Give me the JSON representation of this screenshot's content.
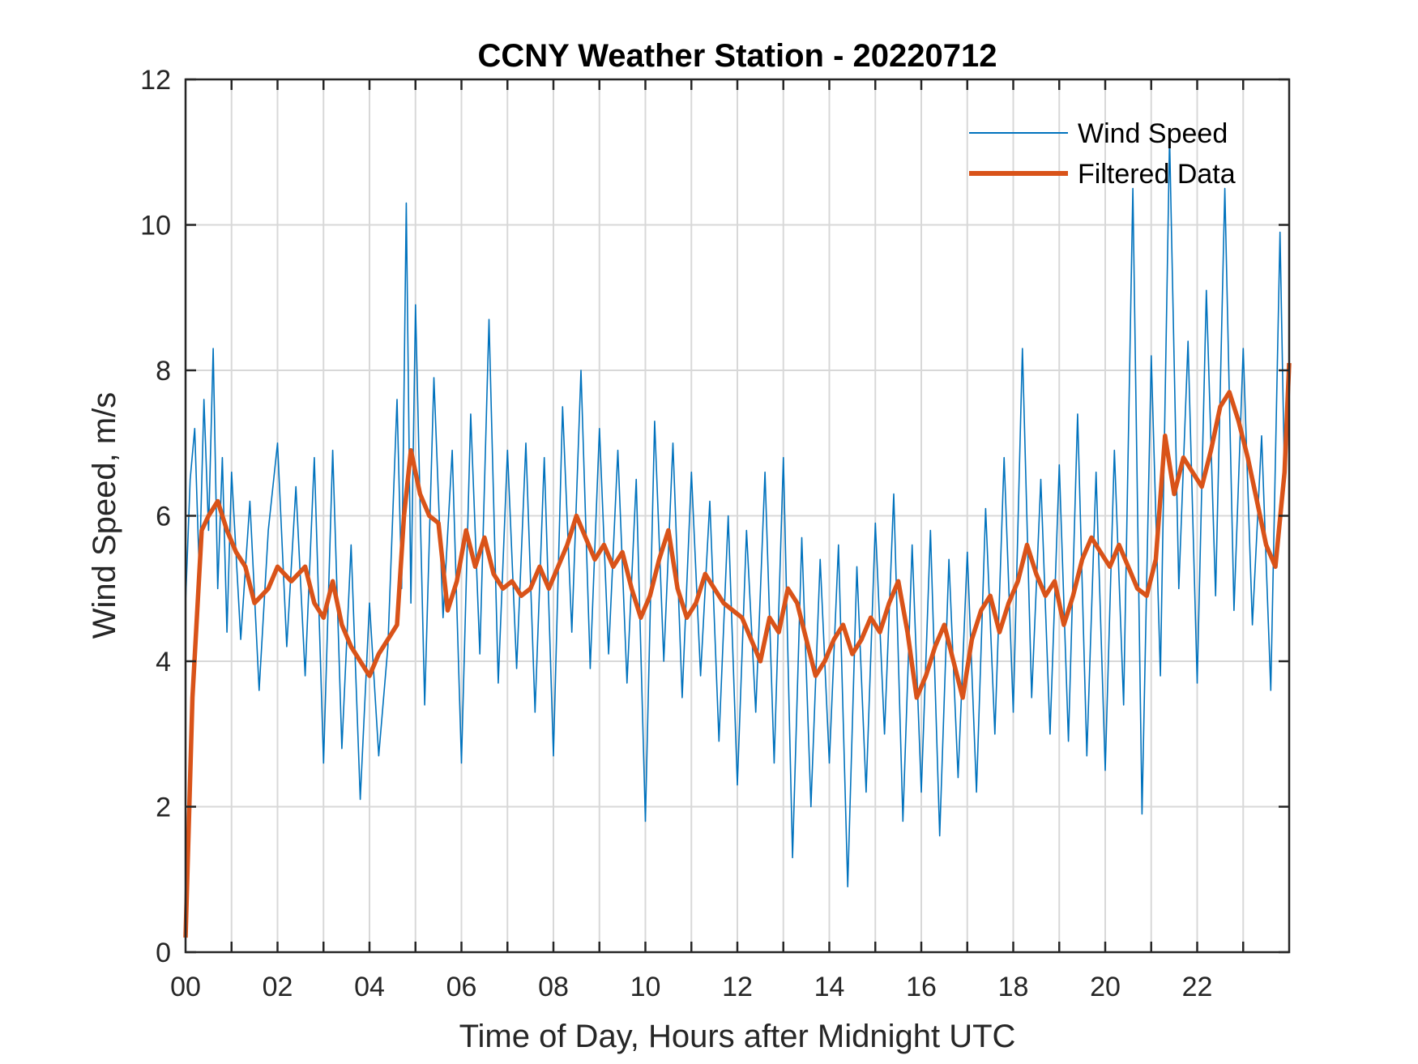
{
  "chart_data": {
    "type": "line",
    "title": "CCNY Weather Station - 20220712",
    "xlabel": "Time of Day, Hours after Midnight UTC",
    "ylabel": "Wind Speed, m/s",
    "xlim": [
      0,
      24
    ],
    "ylim": [
      0,
      12
    ],
    "x_ticks": [
      "00",
      "02",
      "04",
      "06",
      "08",
      "10",
      "12",
      "14",
      "16",
      "18",
      "20",
      "22"
    ],
    "y_ticks": [
      "0",
      "2",
      "4",
      "6",
      "8",
      "10",
      "12"
    ],
    "grid": true,
    "legend_position": "top-right",
    "series": [
      {
        "name": "Wind Speed",
        "color": "#0072BD",
        "x": [
          0.0,
          0.1,
          0.2,
          0.3,
          0.4,
          0.5,
          0.6,
          0.7,
          0.8,
          0.9,
          1.0,
          1.2,
          1.4,
          1.6,
          1.8,
          2.0,
          2.2,
          2.4,
          2.6,
          2.8,
          3.0,
          3.2,
          3.4,
          3.6,
          3.8,
          4.0,
          4.2,
          4.4,
          4.6,
          4.7,
          4.8,
          4.9,
          5.0,
          5.2,
          5.4,
          5.6,
          5.8,
          6.0,
          6.2,
          6.4,
          6.6,
          6.8,
          7.0,
          7.2,
          7.4,
          7.6,
          7.8,
          8.0,
          8.2,
          8.4,
          8.6,
          8.8,
          9.0,
          9.2,
          9.4,
          9.6,
          9.8,
          10.0,
          10.2,
          10.4,
          10.6,
          10.8,
          11.0,
          11.2,
          11.4,
          11.6,
          11.8,
          12.0,
          12.2,
          12.4,
          12.6,
          12.8,
          13.0,
          13.2,
          13.4,
          13.6,
          13.8,
          14.0,
          14.2,
          14.4,
          14.6,
          14.8,
          15.0,
          15.2,
          15.4,
          15.6,
          15.8,
          16.0,
          16.2,
          16.4,
          16.6,
          16.8,
          17.0,
          17.2,
          17.4,
          17.6,
          17.8,
          18.0,
          18.2,
          18.4,
          18.6,
          18.8,
          19.0,
          19.2,
          19.4,
          19.6,
          19.8,
          20.0,
          20.2,
          20.4,
          20.6,
          20.8,
          21.0,
          21.2,
          21.4,
          21.6,
          21.8,
          22.0,
          22.2,
          22.4,
          22.6,
          22.8,
          23.0,
          23.2,
          23.4,
          23.6,
          23.8,
          23.9
        ],
        "y": [
          4.8,
          6.5,
          7.2,
          5.2,
          7.6,
          5.8,
          8.3,
          5.0,
          6.8,
          4.4,
          6.6,
          4.3,
          6.2,
          3.6,
          5.8,
          7.0,
          4.2,
          6.4,
          3.8,
          6.8,
          2.6,
          6.9,
          2.8,
          5.6,
          2.1,
          4.8,
          2.7,
          4.2,
          7.6,
          5.0,
          10.3,
          4.8,
          8.9,
          3.4,
          7.9,
          4.6,
          6.9,
          2.6,
          7.4,
          4.1,
          8.7,
          3.7,
          6.9,
          3.9,
          7.0,
          3.3,
          6.8,
          2.7,
          7.5,
          4.4,
          8.0,
          3.9,
          7.2,
          4.1,
          6.9,
          3.7,
          6.5,
          1.8,
          7.3,
          4.0,
          7.0,
          3.5,
          6.6,
          3.8,
          6.2,
          2.9,
          6.0,
          2.3,
          5.8,
          3.3,
          6.6,
          2.6,
          6.8,
          1.3,
          5.7,
          2.0,
          5.4,
          2.6,
          5.6,
          0.9,
          5.3,
          2.2,
          5.9,
          3.0,
          6.3,
          1.8,
          5.6,
          2.2,
          5.8,
          1.6,
          5.4,
          2.4,
          5.5,
          2.2,
          6.1,
          3.0,
          6.8,
          3.3,
          8.3,
          3.5,
          6.5,
          3.0,
          6.7,
          2.9,
          7.4,
          2.7,
          6.6,
          2.5,
          6.9,
          3.4,
          10.5,
          1.9,
          8.2,
          3.8,
          11.2,
          5.0,
          8.4,
          3.7,
          9.1,
          4.9,
          10.5,
          4.7,
          8.3,
          4.5,
          7.1,
          3.6,
          9.9,
          6.5
        ]
      },
      {
        "name": "Filtered Data",
        "color": "#D95319",
        "x": [
          0.0,
          0.15,
          0.35,
          0.5,
          0.7,
          0.9,
          1.1,
          1.3,
          1.5,
          1.8,
          2.0,
          2.3,
          2.6,
          2.8,
          3.0,
          3.2,
          3.4,
          3.6,
          3.8,
          4.0,
          4.2,
          4.4,
          4.6,
          4.75,
          4.9,
          5.1,
          5.3,
          5.5,
          5.7,
          5.9,
          6.1,
          6.3,
          6.5,
          6.7,
          6.9,
          7.1,
          7.3,
          7.5,
          7.7,
          7.9,
          8.1,
          8.3,
          8.5,
          8.7,
          8.9,
          9.1,
          9.3,
          9.5,
          9.7,
          9.9,
          10.1,
          10.3,
          10.5,
          10.7,
          10.9,
          11.1,
          11.3,
          11.5,
          11.7,
          11.9,
          12.1,
          12.3,
          12.5,
          12.7,
          12.9,
          13.1,
          13.3,
          13.5,
          13.7,
          13.9,
          14.1,
          14.3,
          14.5,
          14.7,
          14.9,
          15.1,
          15.3,
          15.5,
          15.7,
          15.9,
          16.1,
          16.3,
          16.5,
          16.7,
          16.9,
          17.1,
          17.3,
          17.5,
          17.7,
          17.9,
          18.1,
          18.3,
          18.5,
          18.7,
          18.9,
          19.1,
          19.3,
          19.5,
          19.7,
          19.9,
          20.1,
          20.3,
          20.5,
          20.7,
          20.9,
          21.1,
          21.3,
          21.5,
          21.7,
          21.9,
          22.1,
          22.3,
          22.5,
          22.7,
          22.9,
          23.1,
          23.3,
          23.5,
          23.7,
          23.9,
          24.0
        ],
        "y": [
          0.2,
          3.5,
          5.8,
          6.0,
          6.2,
          5.8,
          5.5,
          5.3,
          4.8,
          5.0,
          5.3,
          5.1,
          5.3,
          4.8,
          4.6,
          5.1,
          4.5,
          4.2,
          4.0,
          3.8,
          4.1,
          4.3,
          4.5,
          6.0,
          6.9,
          6.3,
          6.0,
          5.9,
          4.7,
          5.1,
          5.8,
          5.3,
          5.7,
          5.2,
          5.0,
          5.1,
          4.9,
          5.0,
          5.3,
          5.0,
          5.3,
          5.6,
          6.0,
          5.7,
          5.4,
          5.6,
          5.3,
          5.5,
          5.0,
          4.6,
          4.9,
          5.4,
          5.8,
          5.0,
          4.6,
          4.8,
          5.2,
          5.0,
          4.8,
          4.7,
          4.6,
          4.3,
          4.0,
          4.6,
          4.4,
          5.0,
          4.8,
          4.3,
          3.8,
          4.0,
          4.3,
          4.5,
          4.1,
          4.3,
          4.6,
          4.4,
          4.8,
          5.1,
          4.4,
          3.5,
          3.8,
          4.2,
          4.5,
          4.0,
          3.5,
          4.3,
          4.7,
          4.9,
          4.4,
          4.8,
          5.1,
          5.6,
          5.2,
          4.9,
          5.1,
          4.5,
          4.9,
          5.4,
          5.7,
          5.5,
          5.3,
          5.6,
          5.3,
          5.0,
          4.9,
          5.4,
          7.1,
          6.3,
          6.8,
          6.6,
          6.4,
          6.9,
          7.5,
          7.7,
          7.3,
          6.8,
          6.2,
          5.6,
          5.3,
          6.6,
          8.1
        ]
      }
    ]
  }
}
